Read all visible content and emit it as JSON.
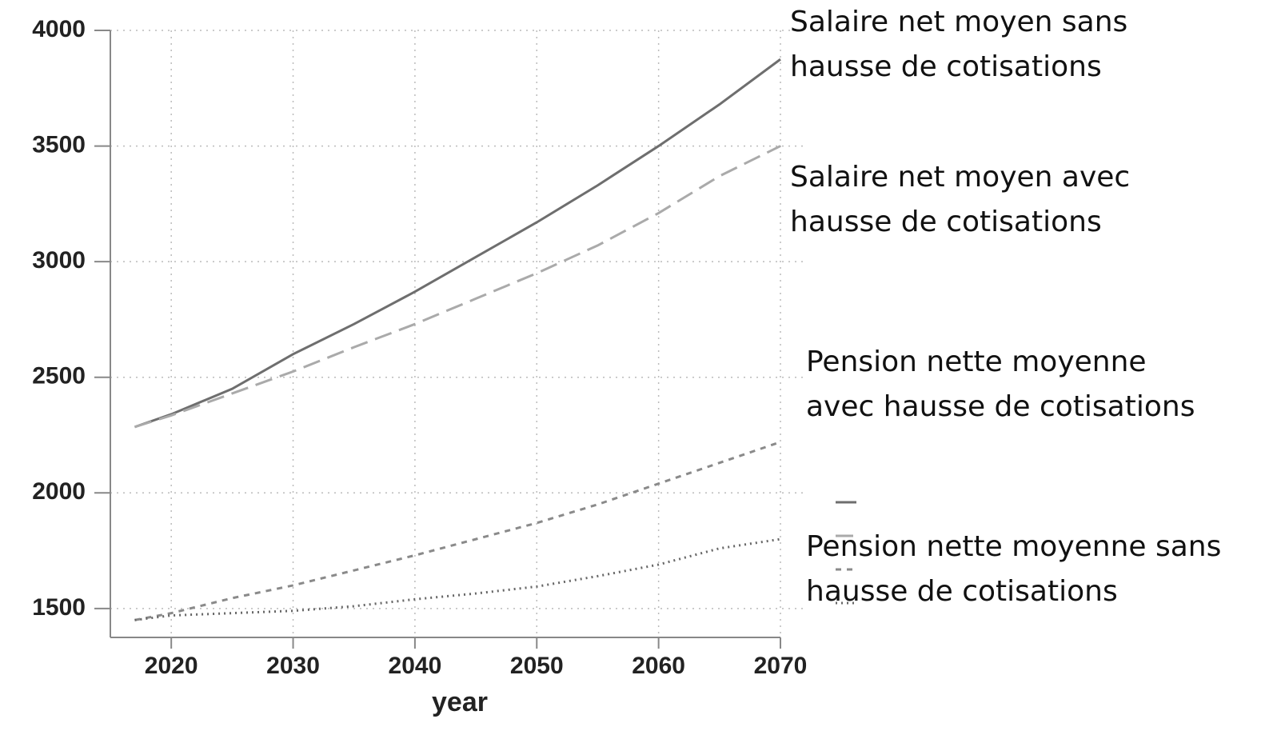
{
  "chart_data": {
    "type": "line",
    "x_label": "year",
    "x": [
      2017,
      2020,
      2025,
      2030,
      2035,
      2040,
      2045,
      2050,
      2055,
      2060,
      2065,
      2070
    ],
    "series": [
      {
        "name": "Salaire net moyen sans\nhausse de cotisations",
        "color": "#6e6e6e",
        "dash": "solid",
        "values": [
          2285,
          2340,
          2450,
          2600,
          2730,
          2870,
          3020,
          3170,
          3330,
          3500,
          3680,
          3875
        ]
      },
      {
        "name": "Salaire net moyen avec\nhausse de cotisations",
        "color": "#aaaaaa",
        "dash": "long",
        "values": [
          2285,
          2335,
          2430,
          2525,
          2630,
          2730,
          2840,
          2950,
          3070,
          3210,
          3370,
          3500
        ]
      },
      {
        "name": "Pension nette moyenne\navec hausse de cotisations",
        "color": "#8a8a8a",
        "dash": "short",
        "values": [
          1450,
          1480,
          1545,
          1600,
          1665,
          1730,
          1800,
          1870,
          1950,
          2040,
          2130,
          2220
        ]
      },
      {
        "name": "Pension nette moyenne sans\nhausse de cotisations",
        "color": "#666666",
        "dash": "dot",
        "values": [
          1450,
          1470,
          1480,
          1490,
          1510,
          1540,
          1565,
          1595,
          1640,
          1690,
          1760,
          1800
        ]
      }
    ],
    "xlim": [
      2015,
      2070
    ],
    "xticks": [
      2020,
      2030,
      2040,
      2050,
      2060,
      2070
    ],
    "ylim": [
      1375,
      4000
    ],
    "yticks": [
      1500,
      2000,
      2500,
      3000,
      3500,
      4000
    ],
    "grid": true
  }
}
